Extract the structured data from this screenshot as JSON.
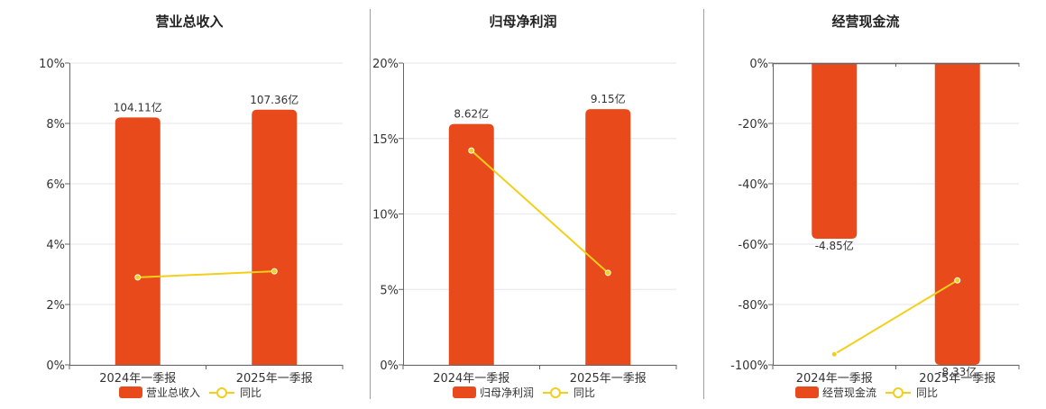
{
  "colors": {
    "bar": "#E84A1B",
    "line": "#F2CF1A",
    "grid": "#E6E6EE",
    "axis": "#666666",
    "divider": "#A0A0A0"
  },
  "chart_data": [
    {
      "type": "bar",
      "title": "营业总收入",
      "categories": [
        "2024年一季报",
        "2025年一季报"
      ],
      "series": [
        {
          "name": "营业总收入",
          "type": "bar",
          "axis": "hidden",
          "values": [
            104.11,
            107.36
          ],
          "labels": [
            "104.11亿",
            "107.36亿"
          ]
        },
        {
          "name": "同比",
          "type": "line",
          "axis": "left",
          "values": [
            2.9,
            3.1
          ]
        }
      ],
      "yaxis": {
        "ticks": [
          "0%",
          "2%",
          "4%",
          "6%",
          "8%",
          "10%"
        ],
        "ylim": [
          0,
          10
        ]
      },
      "bar_axis": {
        "ylim": [
          0,
          127
        ]
      },
      "legend": "bottom",
      "grid": true
    },
    {
      "type": "bar",
      "title": "归母净利润",
      "categories": [
        "2024年一季报",
        "2025年一季报"
      ],
      "series": [
        {
          "name": "归母净利润",
          "type": "bar",
          "axis": "hidden",
          "values": [
            8.62,
            9.15
          ],
          "labels": [
            "8.62亿",
            "9.15亿"
          ]
        },
        {
          "name": "同比",
          "type": "line",
          "axis": "left",
          "values": [
            14.2,
            6.1
          ]
        }
      ],
      "yaxis": {
        "ticks": [
          "0%",
          "5%",
          "10%",
          "15%",
          "20%"
        ],
        "ylim": [
          0,
          20
        ]
      },
      "bar_axis": {
        "ylim": [
          0,
          10.8
        ]
      },
      "legend": "bottom",
      "grid": true
    },
    {
      "type": "bar",
      "title": "经营现金流",
      "categories": [
        "2024年一季报",
        "2025年一季报"
      ],
      "series": [
        {
          "name": "经营现金流",
          "type": "bar",
          "axis": "hidden",
          "values": [
            -4.85,
            -8.33
          ],
          "labels": [
            "-4.85亿",
            "-8.33亿"
          ]
        },
        {
          "name": "同比",
          "type": "line",
          "axis": "left",
          "values": [
            -96.5,
            -72
          ]
        }
      ],
      "yaxis": {
        "ticks": [
          "-100%",
          "-80%",
          "-60%",
          "-40%",
          "-20%",
          "0%"
        ],
        "ylim": [
          -100,
          0
        ]
      },
      "bar_axis": {
        "ylim": [
          -8.33,
          0
        ],
        "inverted": true
      },
      "legend": "bottom",
      "grid": true
    }
  ]
}
